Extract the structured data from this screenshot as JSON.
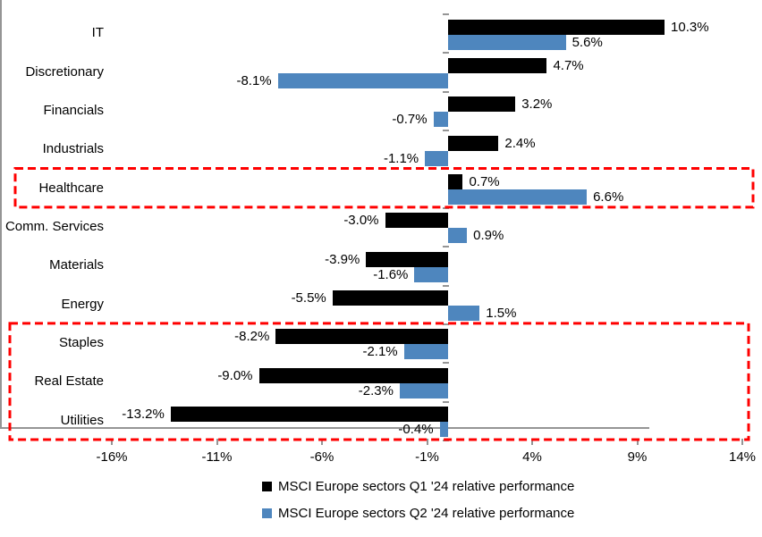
{
  "chart_data": {
    "type": "bar",
    "orientation": "horizontal",
    "title": "",
    "categories": [
      "IT",
      "Discretionary",
      "Financials",
      "Industrials",
      "Healthcare",
      "Comm. Services",
      "Materials",
      "Energy",
      "Staples",
      "Real Estate",
      "Utilities"
    ],
    "series": [
      {
        "name": "MSCI Europe sectors Q1 '24 relative performance",
        "color": "#000000",
        "values": [
          10.3,
          4.7,
          3.2,
          2.4,
          0.7,
          -3.0,
          -3.9,
          -5.5,
          -8.2,
          -9.0,
          -13.2
        ]
      },
      {
        "name": "MSCI Europe sectors Q2 '24 relative performance",
        "color": "#4E86BE",
        "values": [
          5.6,
          -8.1,
          -0.7,
          -1.1,
          6.6,
          0.9,
          -1.6,
          1.5,
          -2.1,
          -2.3,
          -0.4
        ]
      }
    ],
    "data_labels": true,
    "value_label_suffix": "%",
    "x_ticks": [
      {
        "label": "-16%",
        "value": -16
      },
      {
        "label": "-11%",
        "value": -11
      },
      {
        "label": "-6%",
        "value": -6
      },
      {
        "label": "-1%",
        "value": -1
      },
      {
        "label": "4%",
        "value": 4
      },
      {
        "label": "9%",
        "value": 9
      },
      {
        "label": "14%",
        "value": 14
      }
    ],
    "xlim": [
      -16.8,
      14.1
    ],
    "grid": false,
    "legend_position": "bottom",
    "axis_color": "#959595",
    "highlight_boxes": [
      {
        "name": "healthcare-highlight",
        "categories": [
          "Healthcare"
        ],
        "color": "#FF0000"
      },
      {
        "name": "defensives-highlight",
        "categories": [
          "Staples",
          "Real Estate",
          "Utilities"
        ],
        "color": "#FF0000"
      }
    ]
  }
}
